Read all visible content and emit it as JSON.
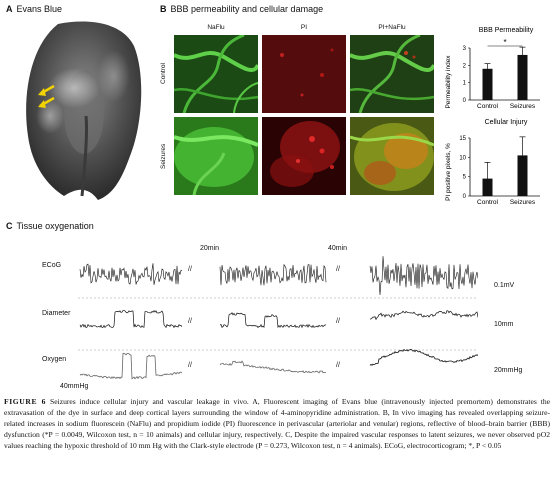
{
  "panel_a": {
    "letter": "A",
    "title": "Evans Blue"
  },
  "panel_b": {
    "letter": "B",
    "title": "BBB permeability and cellular damage",
    "columns": [
      "NaFlu",
      "PI",
      "PI+NaFlu"
    ],
    "rows": [
      "Control",
      "Seizures"
    ],
    "colors": {
      "green": "#2ea82e",
      "red": "#b01818"
    }
  },
  "chart_data": [
    {
      "type": "bar",
      "title": "BBB Permeability",
      "ylabel": "Permeability index",
      "categories": [
        "Control",
        "Seizures"
      ],
      "values": [
        1.8,
        2.6
      ],
      "errors": [
        0.3,
        0.45
      ],
      "ylim": [
        0,
        3
      ],
      "yticks": [
        0,
        1,
        2,
        3
      ],
      "significance": "*"
    },
    {
      "type": "bar",
      "title": "Cellular Injury",
      "ylabel": "PI positive pixels, %",
      "categories": [
        "Control",
        "Seizures"
      ],
      "values": [
        4.5,
        10.5
      ],
      "errors": [
        4.2,
        4.8
      ],
      "ylim": [
        0,
        15
      ],
      "yticks": [
        0,
        5,
        10,
        15
      ]
    }
  ],
  "panel_c": {
    "letter": "C",
    "title": "Tissue oxygenation",
    "time_labels": [
      "20min",
      "40min"
    ],
    "traces": [
      "ECoG",
      "Diameter",
      "Oxygen"
    ],
    "break_symbol": "//",
    "scale_bars": [
      "0.1mV",
      "10mm",
      "20mmHg"
    ],
    "left_scale": "40mmHg"
  },
  "caption": {
    "figure": "FIGURE 6",
    "text": "Seizures induce cellular injury and vascular leakage in vivo. A, Fluorescent imaging of Evans blue (intravenously injected premortem) demonstrates the extravasation of the dye in surface and deep cortical layers surrounding the window of 4-aminopyridine administration. B, In vivo imaging has revealed overlapping seizure-related increases in sodium fluorescein (NaFlu) and propidium iodide (PI) fluorescence in perivascular (arteriolar and venular) regions, reflective of blood–brain barrier (BBB) dysfunction (*P = 0.0049, Wilcoxon test, n = 10 animals) and cellular injury, respectively. C, Despite the impaired vascular responses to latent seizures, we never observed pO2 values reaching the hypoxic threshold of 10 mm Hg with the Clark-style electrode (P = 0.273, Wilcoxon test, n = 4 animals). ECoG, electrocorticogram; *, P < 0.05"
  }
}
